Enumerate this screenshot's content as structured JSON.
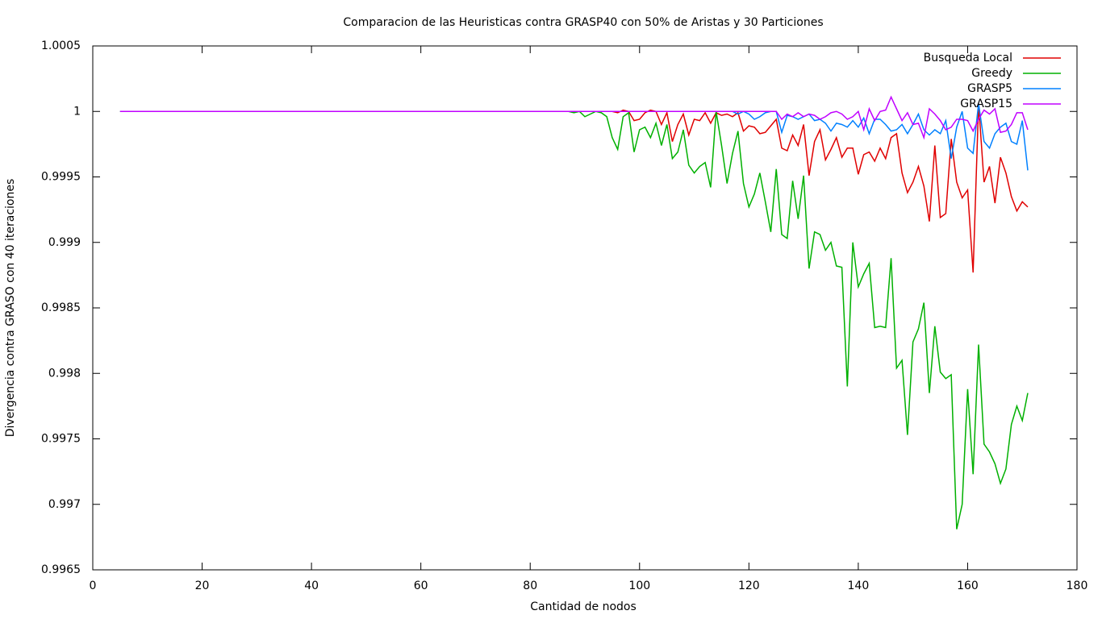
{
  "chart_data": {
    "type": "line",
    "title": "Comparacion de las Heuristicas contra GRASP40 con 50% de Aristas y 30 Particiones",
    "x_label": "Cantidad de nodos",
    "y_label": "Divergencia contra GRASO con 40 iteraciones",
    "xlim": [
      0,
      180
    ],
    "xticks": [
      0,
      20,
      40,
      60,
      80,
      100,
      120,
      140,
      160,
      180
    ],
    "ylim": [
      0.9965,
      1.0005
    ],
    "yticks": [
      0.9965,
      0.997,
      0.9975,
      0.998,
      0.9985,
      0.999,
      0.9995,
      1,
      1.0005
    ],
    "grid": false,
    "legend": "top-right",
    "x": [
      5,
      85,
      86,
      87,
      88,
      89,
      90,
      91,
      92,
      93,
      94,
      95,
      96,
      97,
      98,
      99,
      100,
      101,
      102,
      103,
      104,
      105,
      106,
      107,
      108,
      109,
      110,
      111,
      112,
      113,
      114,
      115,
      116,
      117,
      118,
      119,
      120,
      121,
      122,
      123,
      124,
      125,
      126,
      127,
      128,
      129,
      130,
      131,
      132,
      133,
      134,
      135,
      136,
      137,
      138,
      139,
      140,
      141,
      142,
      143,
      144,
      145,
      146,
      147,
      148,
      149,
      150,
      151,
      152,
      153,
      154,
      155,
      156,
      157,
      158,
      159,
      160,
      161,
      162,
      163,
      164,
      165,
      166,
      167,
      168,
      169,
      170,
      171
    ],
    "series": [
      {
        "name": "Busqueda Local",
        "color": "#e00000",
        "values": [
          1,
          1,
          1,
          1,
          1,
          1,
          1,
          1,
          1,
          1,
          1,
          1,
          0.99999,
          1.00001,
          1,
          0.99993,
          0.99994,
          0.99999,
          1.00001,
          1,
          0.9999,
          0.99999,
          0.99977,
          0.9999,
          0.99998,
          0.99982,
          0.99994,
          0.99993,
          0.99999,
          0.99991,
          0.99999,
          0.99997,
          0.99998,
          0.99996,
          0.99999,
          0.99985,
          0.99989,
          0.99988,
          0.99983,
          0.99984,
          0.99989,
          0.99994,
          0.99972,
          0.9997,
          0.99982,
          0.99974,
          0.9999,
          0.99951,
          0.99977,
          0.99986,
          0.99963,
          0.99971,
          0.9998,
          0.99965,
          0.99972,
          0.99972,
          0.99952,
          0.99967,
          0.99969,
          0.99962,
          0.99972,
          0.99964,
          0.9998,
          0.99983,
          0.99953,
          0.99938,
          0.99946,
          0.99958,
          0.99943,
          0.99916,
          0.99974,
          0.99919,
          0.99922,
          0.99979,
          0.99946,
          0.99934,
          0.9994,
          0.99877,
          1.00006,
          0.99946,
          0.99958,
          0.9993,
          0.99965,
          0.99953,
          0.99935,
          0.99924,
          0.99931,
          0.99927
        ]
      },
      {
        "name": "Greedy",
        "color": "#00b000",
        "values": [
          1,
          1,
          1,
          1,
          0.99999,
          1,
          0.99996,
          0.99998,
          1,
          0.99999,
          0.99996,
          0.9998,
          0.99971,
          0.99996,
          0.99999,
          0.99969,
          0.99986,
          0.99988,
          0.9998,
          0.99991,
          0.99974,
          0.9999,
          0.99964,
          0.99969,
          0.99986,
          0.99959,
          0.99953,
          0.99958,
          0.99961,
          0.99942,
          1,
          0.99974,
          0.99945,
          0.99968,
          0.99985,
          0.99945,
          0.99927,
          0.99937,
          0.99953,
          0.99931,
          0.99908,
          0.99956,
          0.99906,
          0.99903,
          0.99947,
          0.99918,
          0.99951,
          0.9988,
          0.99908,
          0.99906,
          0.99894,
          0.999,
          0.99882,
          0.99881,
          0.9979,
          0.999,
          0.99866,
          0.99876,
          0.99884,
          0.99835,
          0.99836,
          0.99835,
          0.99888,
          0.99804,
          0.9981,
          0.99753,
          0.99824,
          0.99834,
          0.99854,
          0.99785,
          0.99836,
          0.99801,
          0.99796,
          0.99799,
          0.99681,
          0.997,
          0.99788,
          0.99723,
          0.99822,
          0.99746,
          0.9974,
          0.99731,
          0.99716,
          0.99727,
          0.99761,
          0.99775,
          0.99764,
          0.99785
        ]
      },
      {
        "name": "GRASP5",
        "color": "#0080ff",
        "values": [
          1,
          1,
          1,
          1,
          1,
          1,
          1,
          1,
          1,
          1,
          1,
          1,
          1,
          1,
          1,
          1,
          1,
          1,
          1,
          1,
          1,
          1,
          1,
          1,
          1,
          1,
          1,
          1,
          1,
          1,
          1,
          1,
          1,
          1,
          0.99998,
          1,
          0.99998,
          0.99994,
          0.99996,
          0.99999,
          1,
          1,
          0.99984,
          0.99997,
          0.99996,
          0.99994,
          0.99996,
          0.99998,
          0.99993,
          0.99994,
          0.99991,
          0.99985,
          0.99991,
          0.9999,
          0.99988,
          0.99993,
          0.99988,
          0.99995,
          0.99983,
          0.99994,
          0.99994,
          0.9999,
          0.99985,
          0.99986,
          0.9999,
          0.99983,
          0.9999,
          0.99998,
          0.99986,
          0.99982,
          0.99986,
          0.99983,
          0.99993,
          0.99964,
          0.99988,
          1,
          0.99972,
          0.99968,
          1.00006,
          0.99977,
          0.99972,
          0.99983,
          0.99988,
          0.99991,
          0.99977,
          0.99975,
          0.99993,
          0.99955
        ]
      },
      {
        "name": "GRASP15",
        "color": "#c000ff",
        "values": [
          1,
          1,
          1,
          1,
          1,
          1,
          1,
          1,
          1,
          1,
          1,
          1,
          1,
          1,
          1,
          1,
          1,
          1,
          1,
          1,
          1,
          1,
          1,
          1,
          1,
          1,
          1,
          1,
          1,
          1,
          1,
          1,
          1,
          1,
          1,
          1,
          1,
          1,
          1,
          1,
          1,
          1,
          0.99994,
          0.99998,
          0.99996,
          0.99999,
          0.99996,
          0.99998,
          0.99997,
          0.99994,
          0.99996,
          0.99999,
          1,
          0.99998,
          0.99994,
          0.99996,
          1,
          0.99986,
          1.00002,
          0.99993,
          1,
          1.00001,
          1.00011,
          1.00002,
          0.99993,
          0.99999,
          0.9999,
          0.99991,
          0.9998,
          1.00002,
          0.99998,
          0.99993,
          0.99986,
          0.99988,
          0.99994,
          0.99994,
          0.99993,
          0.99985,
          0.99994,
          1.00001,
          0.99998,
          1.00002,
          0.99984,
          0.99985,
          0.9999,
          0.99999,
          0.99999,
          0.99986
        ]
      }
    ]
  }
}
